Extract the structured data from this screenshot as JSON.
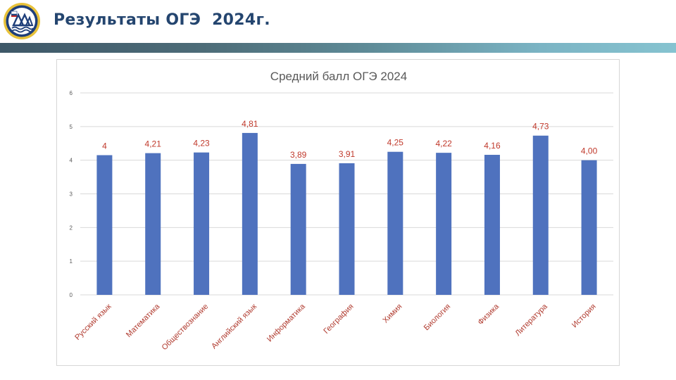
{
  "header": {
    "title": "Результаты ОГЭ  2024г."
  },
  "colors": {
    "title": "#24456f",
    "bar": "#4f72be",
    "data_label": "#c0392b",
    "category_label": "#b03a2e",
    "band_start": "#3e5868",
    "band_end": "#86c3d0"
  },
  "chart_data": {
    "type": "bar",
    "title": "Средний балл ОГЭ 2024",
    "xlabel": "",
    "ylabel": "",
    "ylim": [
      0,
      6
    ],
    "yticks": [
      "0",
      "1",
      "2",
      "3",
      "4",
      "5",
      "6"
    ],
    "grid": true,
    "legend": "none",
    "categories": [
      "Русский язык",
      "Математика",
      "Обществознание",
      "Английский язык",
      "Информатика",
      "География",
      "Химия",
      "Биология",
      "Физика",
      "Литература",
      "История"
    ],
    "values": [
      4.15,
      4.21,
      4.23,
      4.81,
      3.89,
      3.91,
      4.25,
      4.22,
      4.16,
      4.73,
      4.0
    ],
    "data_labels": [
      "4",
      "4,21",
      "4,23",
      "4,81",
      "3,89",
      "3,91",
      "4,25",
      "4,22",
      "4,16",
      "4,73",
      "4,00"
    ]
  }
}
